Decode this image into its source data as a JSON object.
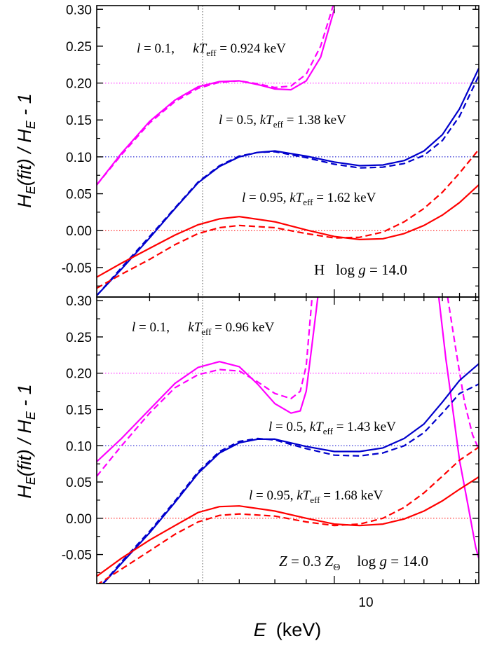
{
  "figure": {
    "xlabel_symbol": "E",
    "xlabel_unit": "(keV)",
    "ylabel_parts": {
      "H1": "H",
      "sub1": "E",
      "mid": "(fit) / ",
      "H2": "H",
      "sub2": "E",
      "tail": " - 1"
    },
    "x_tick_label": "10"
  },
  "chart_data": [
    {
      "type": "line",
      "panel": "top",
      "xscale": "log",
      "xlim": [
        4.1,
        17.2
      ],
      "ylim": [
        -0.09,
        0.305
      ],
      "yticks": [
        "0.30",
        "0.25",
        "0.20",
        "0.15",
        "0.10",
        "0.05",
        "0.00",
        "-0.05"
      ],
      "yticks_values": [
        0.3,
        0.25,
        0.2,
        0.15,
        0.1,
        0.05,
        0.0,
        -0.05
      ],
      "vline_x": 6.1,
      "reference_lines": [
        {
          "y": 0.2,
          "color": "#ff00ff"
        },
        {
          "y": 0.1,
          "color": "#0000cc"
        },
        {
          "y": 0.0,
          "color": "#ff0000"
        }
      ],
      "annotations": [
        {
          "l": "l",
          "eq1": " = 0.1,   ",
          "kT": "kT",
          "sub": "eff",
          "eq2": " = 0.924 keV"
        },
        {
          "l": "l",
          "eq1": " = 0.5, ",
          "kT": "kT",
          "sub": "eff",
          "eq2": " = 1.38 keV"
        },
        {
          "l": "l",
          "eq1": " = 0.95, ",
          "kT": "kT",
          "sub": "eff",
          "eq2": " = 1.62 keV"
        }
      ],
      "corner_label": {
        "element": "H",
        "logg": "log ",
        "g": "g",
        "value": " = 14.0"
      },
      "series": [
        {
          "color": "#ff00ff",
          "dash": false,
          "x": [
            4.1,
            4.5,
            5.0,
            5.5,
            6.0,
            6.5,
            7.0,
            7.5,
            8.0,
            8.5,
            9.0,
            9.5,
            10.0
          ],
          "y": [
            0.062,
            0.105,
            0.148,
            0.177,
            0.195,
            0.202,
            0.203,
            0.198,
            0.192,
            0.191,
            0.203,
            0.235,
            0.3
          ]
        },
        {
          "color": "#ff00ff",
          "dash": true,
          "x": [
            4.1,
            4.5,
            5.0,
            5.5,
            6.0,
            6.5,
            7.0,
            7.5,
            8.0,
            8.5,
            9.0,
            9.5,
            10.0
          ],
          "y": [
            0.062,
            0.103,
            0.146,
            0.175,
            0.193,
            0.201,
            0.203,
            0.199,
            0.194,
            0.196,
            0.212,
            0.25,
            0.31
          ]
        },
        {
          "color": "#0000cc",
          "dash": false,
          "x": [
            4.1,
            4.5,
            5.0,
            5.5,
            6.0,
            6.5,
            7.0,
            7.5,
            8.0,
            9.0,
            10.0,
            11.0,
            12.0,
            13.0,
            14.0,
            15.0,
            16.0,
            17.2
          ],
          "y": [
            -0.088,
            -0.052,
            -0.01,
            0.03,
            0.065,
            0.087,
            0.1,
            0.106,
            0.108,
            0.101,
            0.093,
            0.088,
            0.089,
            0.095,
            0.108,
            0.13,
            0.165,
            0.22
          ]
        },
        {
          "color": "#0000cc",
          "dash": true,
          "x": [
            4.1,
            4.5,
            5.0,
            5.5,
            6.0,
            6.5,
            7.0,
            7.5,
            8.0,
            9.0,
            10.0,
            11.0,
            12.0,
            13.0,
            14.0,
            15.0,
            16.0,
            17.2
          ],
          "y": [
            -0.088,
            -0.05,
            -0.008,
            0.031,
            0.066,
            0.088,
            0.101,
            0.106,
            0.107,
            0.099,
            0.09,
            0.085,
            0.086,
            0.091,
            0.102,
            0.122,
            0.155,
            0.21
          ]
        },
        {
          "color": "#ff0000",
          "dash": false,
          "x": [
            4.1,
            4.5,
            5.0,
            5.5,
            6.0,
            6.5,
            7.0,
            8.0,
            9.0,
            10.0,
            11.0,
            12.0,
            13.0,
            14.0,
            15.0,
            16.0,
            17.2
          ],
          "y": [
            -0.063,
            -0.044,
            -0.024,
            -0.006,
            0.008,
            0.016,
            0.019,
            0.012,
            0.001,
            -0.008,
            -0.012,
            -0.011,
            -0.004,
            0.007,
            0.021,
            0.038,
            0.062
          ]
        },
        {
          "color": "#ff0000",
          "dash": true,
          "x": [
            4.1,
            4.5,
            5.0,
            5.5,
            6.0,
            6.5,
            7.0,
            8.0,
            9.0,
            10.0,
            11.0,
            12.0,
            13.0,
            14.0,
            15.0,
            16.0,
            17.2
          ],
          "y": [
            -0.078,
            -0.059,
            -0.039,
            -0.019,
            -0.004,
            0.004,
            0.007,
            0.004,
            -0.004,
            -0.01,
            -0.009,
            -0.002,
            0.012,
            0.03,
            0.052,
            0.078,
            0.11
          ]
        }
      ]
    },
    {
      "type": "line",
      "panel": "bottom",
      "xscale": "log",
      "xlim": [
        4.1,
        17.2
      ],
      "ylim": [
        -0.09,
        0.305
      ],
      "yticks": [
        "0.30",
        "0.25",
        "0.20",
        "0.15",
        "0.10",
        "0.05",
        "0.00",
        "-0.05"
      ],
      "yticks_values": [
        0.3,
        0.25,
        0.2,
        0.15,
        0.1,
        0.05,
        0.0,
        -0.05
      ],
      "vline_x": 6.1,
      "reference_lines": [
        {
          "y": 0.2,
          "color": "#ff00ff"
        },
        {
          "y": 0.1,
          "color": "#0000cc"
        },
        {
          "y": 0.0,
          "color": "#ff0000"
        }
      ],
      "annotations": [
        {
          "l": "l",
          "eq1": " = 0.1,   ",
          "kT": "kT",
          "sub": "eff",
          "eq2": " = 0.96 keV"
        },
        {
          "l": "l",
          "eq1": " = 0.5, ",
          "kT": "kT",
          "sub": "eff",
          "eq2": " = 1.43 keV"
        },
        {
          "l": "l",
          "eq1": " = 0.95, ",
          "kT": "kT",
          "sub": "eff",
          "eq2": " = 1.68 keV"
        }
      ],
      "corner_label": {
        "Z": "Z",
        "eq": " = 0.3 ",
        "Z2": "Z",
        "sub": "Θ",
        "logg": "log ",
        "g": "g",
        "value": " = 14.0"
      },
      "series": [
        {
          "color": "#ff00ff",
          "dash": false,
          "x": [
            4.1,
            4.5,
            5.0,
            5.5,
            6.0,
            6.5,
            7.0,
            7.5,
            8.0,
            8.5,
            8.8,
            9.0,
            9.2,
            9.4
          ],
          "y": [
            0.078,
            0.11,
            0.15,
            0.186,
            0.208,
            0.216,
            0.209,
            0.185,
            0.158,
            0.145,
            0.148,
            0.175,
            0.24,
            0.305
          ]
        },
        {
          "color": "#ff00ff",
          "dash": false,
          "x": [
            14.8,
            15.2,
            15.6,
            16.0,
            16.5,
            17.0,
            17.2
          ],
          "y": [
            0.305,
            0.22,
            0.15,
            0.08,
            0.02,
            -0.04,
            -0.055
          ]
        },
        {
          "color": "#ff00ff",
          "dash": true,
          "x": [
            4.1,
            4.5,
            5.0,
            5.5,
            6.0,
            6.5,
            7.0,
            7.5,
            8.0,
            8.5,
            8.8,
            9.0,
            9.2
          ],
          "y": [
            0.058,
            0.1,
            0.145,
            0.18,
            0.198,
            0.205,
            0.203,
            0.188,
            0.172,
            0.165,
            0.175,
            0.21,
            0.305
          ]
        },
        {
          "color": "#ff00ff",
          "dash": true,
          "x": [
            15.3,
            15.8,
            16.3,
            16.8,
            17.2
          ],
          "y": [
            0.305,
            0.23,
            0.16,
            0.115,
            0.095
          ]
        },
        {
          "color": "#0000cc",
          "dash": false,
          "x": [
            4.1,
            4.5,
            5.0,
            5.5,
            6.0,
            6.5,
            7.0,
            7.5,
            8.0,
            9.0,
            10.0,
            11.0,
            12.0,
            13.0,
            14.0,
            15.0,
            16.0,
            17.2
          ],
          "y": [
            -0.1,
            -0.062,
            -0.02,
            0.022,
            0.062,
            0.09,
            0.104,
            0.109,
            0.109,
            0.099,
            0.092,
            0.092,
            0.097,
            0.11,
            0.13,
            0.16,
            0.19,
            0.213
          ]
        },
        {
          "color": "#0000cc",
          "dash": true,
          "x": [
            4.1,
            4.5,
            5.0,
            5.5,
            6.0,
            6.5,
            7.0,
            7.5,
            8.0,
            9.0,
            10.0,
            11.0,
            12.0,
            13.0,
            14.0,
            15.0,
            16.0,
            17.2
          ],
          "y": [
            -0.1,
            -0.06,
            -0.018,
            0.024,
            0.064,
            0.092,
            0.106,
            0.11,
            0.108,
            0.096,
            0.087,
            0.086,
            0.09,
            0.1,
            0.118,
            0.145,
            0.172,
            0.185
          ]
        },
        {
          "color": "#ff0000",
          "dash": false,
          "x": [
            4.1,
            4.5,
            5.0,
            5.5,
            6.0,
            6.5,
            7.0,
            8.0,
            9.0,
            10.0,
            11.0,
            12.0,
            13.0,
            14.0,
            15.0,
            16.0,
            17.2
          ],
          "y": [
            -0.08,
            -0.055,
            -0.03,
            -0.01,
            0.008,
            0.016,
            0.017,
            0.01,
            0.0,
            -0.008,
            -0.01,
            -0.008,
            -0.001,
            0.01,
            0.024,
            0.04,
            0.057
          ]
        },
        {
          "color": "#ff0000",
          "dash": true,
          "x": [
            4.1,
            4.5,
            5.0,
            5.5,
            6.0,
            6.5,
            7.0,
            8.0,
            9.0,
            10.0,
            11.0,
            12.0,
            13.0,
            14.0,
            15.0,
            16.0,
            17.2
          ],
          "y": [
            -0.092,
            -0.07,
            -0.045,
            -0.022,
            -0.005,
            0.004,
            0.006,
            0.003,
            -0.005,
            -0.01,
            -0.008,
            0.0,
            0.015,
            0.035,
            0.058,
            0.08,
            0.098
          ]
        }
      ]
    }
  ]
}
